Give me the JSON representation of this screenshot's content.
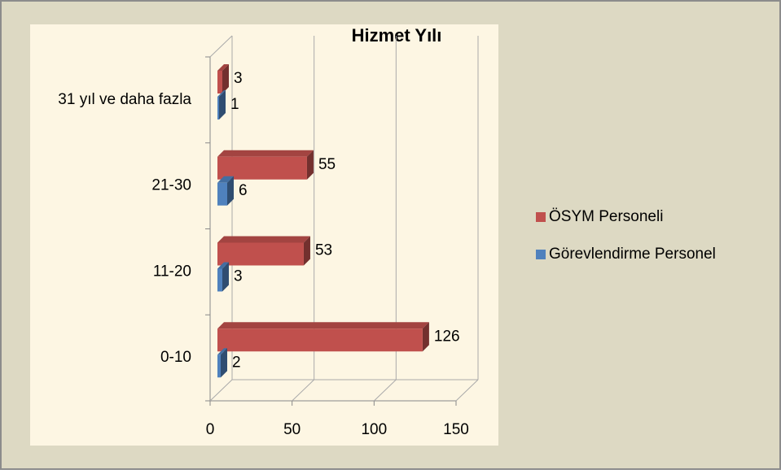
{
  "chart_data": {
    "type": "bar3d",
    "orientation": "horizontal",
    "title": "Hizmet Yılı",
    "categories": [
      "0-10",
      "11-20",
      "21-30",
      "31 yıl ve daha fazla"
    ],
    "series": [
      {
        "name": "ÖSYM Personeli",
        "color": "#c0504d",
        "values": [
          126,
          53,
          55,
          3
        ]
      },
      {
        "name": "Görevlendirme Personel",
        "color": "#4f81bd",
        "values": [
          2,
          3,
          6,
          1
        ]
      }
    ],
    "xlim": [
      0,
      150
    ],
    "xticks": [
      0,
      50,
      100,
      150
    ],
    "grid": true,
    "legend": "right"
  }
}
